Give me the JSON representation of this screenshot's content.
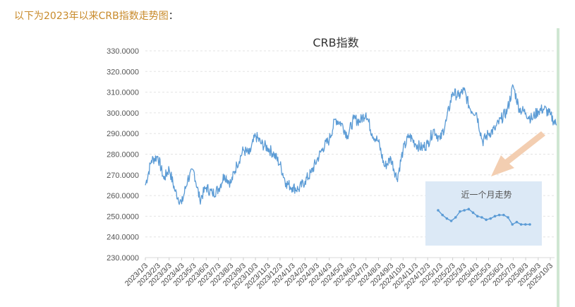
{
  "intro": {
    "text": "以下为2023年以来CRB指数走势图",
    "colon": "："
  },
  "colors": {
    "line": "#5b9bd5",
    "grid": "#e3e3e3",
    "inset_bg": "#dce9f6",
    "arrow": "#f2c9a8",
    "intro_text": "#c88a2a"
  },
  "chart_data": {
    "type": "line",
    "title": "CRB指数",
    "xlabel": "",
    "ylabel": "",
    "ylim": [
      230,
      330
    ],
    "yticks": [
      330,
      320,
      310,
      300,
      290,
      280,
      270,
      260,
      250,
      240,
      230
    ],
    "ytick_labels": [
      "330.0000",
      "320.0000",
      "310.0000",
      "300.0000",
      "290.0000",
      "280.0000",
      "270.0000",
      "260.0000",
      "250.0000",
      "240.0000",
      "230.0000"
    ],
    "grid": true,
    "legend": "none",
    "xticks": [
      "2023/1/3",
      "2023/2/3",
      "2023/3/3",
      "2023/4/3",
      "2023/5/3",
      "2023/6/3",
      "2023/7/3",
      "2023/8/3",
      "2023/9/3",
      "2023/10/3",
      "2023/11/3",
      "2023/12/3",
      "2024/1/3",
      "2024/2/3",
      "2024/3/3",
      "2024/4/3",
      "2024/5/3",
      "2024/6/3",
      "2024/7/3",
      "2024/8/3",
      "2024/9/3",
      "2024/10/3",
      "2024/11/3",
      "2024/12/3",
      "2025/1/3",
      "2025/2/3",
      "2025/3/3",
      "2025/4/3",
      "2025/5/3",
      "2025/6/3",
      "2025/7/3",
      "2025/8/3",
      "2025/9/3",
      "2025/10/3"
    ],
    "series": [
      {
        "x": [
          "2023/1/3",
          "2023/1/18",
          "2023/2/3",
          "2023/2/18",
          "2023/3/3",
          "2023/3/18",
          "2023/4/3",
          "2023/4/18",
          "2023/5/3",
          "2023/5/18",
          "2023/6/3",
          "2023/6/18",
          "2023/7/3",
          "2023/7/18",
          "2023/8/3",
          "2023/8/18",
          "2023/9/3",
          "2023/9/18",
          "2023/10/3",
          "2023/10/18",
          "2023/11/3",
          "2023/11/18",
          "2023/12/3",
          "2023/12/18",
          "2024/1/3",
          "2024/1/18",
          "2024/2/3",
          "2024/2/18",
          "2024/3/3",
          "2024/3/18",
          "2024/4/3",
          "2024/4/18",
          "2024/5/3",
          "2024/5/18",
          "2024/6/3",
          "2024/6/18",
          "2024/7/3",
          "2024/7/18",
          "2024/8/3",
          "2024/8/18",
          "2024/9/3",
          "2024/9/18",
          "2024/10/3",
          "2024/10/18",
          "2024/11/3",
          "2024/11/18",
          "2024/12/3",
          "2024/12/18",
          "2025/1/3",
          "2025/1/18",
          "2025/2/3",
          "2025/2/18",
          "2025/3/3",
          "2025/3/18",
          "2025/4/3",
          "2025/4/18",
          "2025/5/3",
          "2025/5/18",
          "2025/6/3",
          "2025/6/18",
          "2025/7/3",
          "2025/7/18",
          "2025/8/3",
          "2025/8/18",
          "2025/9/3",
          "2025/9/18",
          "2025/10/3",
          "2025/10/18"
        ],
        "values": [
          265,
          277,
          279,
          268,
          273,
          262,
          256,
          268,
          272,
          258,
          264,
          261,
          263,
          270,
          266,
          275,
          282,
          280,
          289,
          285,
          283,
          280,
          275,
          266,
          264,
          263,
          267,
          271,
          277,
          283,
          287,
          297,
          295,
          289,
          297,
          296,
          300,
          290,
          286,
          274,
          278,
          268,
          282,
          289,
          285,
          283,
          285,
          292,
          287,
          296,
          310,
          308,
          311,
          302,
          300,
          286,
          290,
          292,
          297,
          301,
          313,
          302,
          300,
          297,
          301,
          302,
          299,
          294
        ]
      }
    ],
    "annotation_arrow": "from inset toward latest data",
    "inset": {
      "title": "近一个月走势",
      "values": [
        303.5,
        301.5,
        300,
        299,
        300.5,
        303,
        303.5,
        304,
        302.5,
        301,
        300.5,
        299.5,
        300,
        301,
        301.5,
        301.5,
        300.5,
        297.5,
        298.5,
        297.5,
        297.5,
        297.5
      ]
    }
  }
}
